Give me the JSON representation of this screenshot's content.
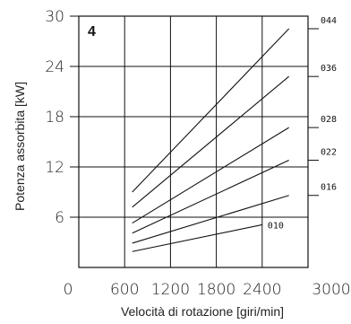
{
  "chart_data": {
    "type": "line",
    "title": "4",
    "xlabel": "Velocità di rotazione [giri/min]",
    "ylabel": "Potenza assorbita [kW]",
    "xlim": [
      0,
      3000
    ],
    "ylim": [
      0,
      30
    ],
    "x_ticks": [
      "0",
      "600",
      "1200",
      "1800",
      "2400",
      "3000"
    ],
    "y_ticks": [
      "6",
      "12",
      "18",
      "24",
      "30"
    ],
    "grid": true,
    "series": [
      {
        "name": "044",
        "x": [
          700,
          2750
        ],
        "y": [
          9.0,
          28.5
        ]
      },
      {
        "name": "036",
        "x": [
          700,
          2750
        ],
        "y": [
          7.2,
          22.8
        ]
      },
      {
        "name": "028",
        "x": [
          700,
          2750
        ],
        "y": [
          5.3,
          16.7
        ]
      },
      {
        "name": "022",
        "x": [
          700,
          2750
        ],
        "y": [
          4.1,
          12.8
        ]
      },
      {
        "name": "016",
        "x": [
          700,
          2750
        ],
        "y": [
          2.9,
          8.6
        ]
      },
      {
        "name": "010",
        "x": [
          700,
          2400
        ],
        "y": [
          1.9,
          5.1
        ]
      }
    ]
  }
}
